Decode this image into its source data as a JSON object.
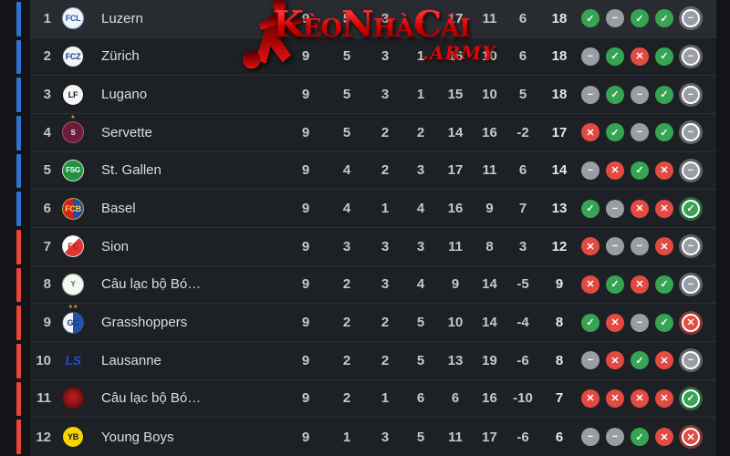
{
  "watermark": {
    "brand": "KèoNhàCái",
    "suffix": ".ARMY"
  },
  "zones": {
    "blue": "#2e72d2",
    "red": "#e84438"
  },
  "form_glyphs": {
    "W": "✓",
    "D": "−",
    "L": "✕"
  },
  "chart_data": {
    "type": "table",
    "columns": [
      "rank",
      "team",
      "played",
      "wins",
      "draws",
      "losses",
      "goals_for",
      "goals_against",
      "goal_diff",
      "points",
      "form"
    ]
  },
  "standings": [
    {
      "rank": "1",
      "team": "Luzern",
      "zone": "blue",
      "played": "9",
      "wins": "5",
      "draws": "3",
      "losses": "1",
      "gf": "17",
      "ga": "11",
      "gd": "6",
      "points": "18",
      "form": [
        "W",
        "D",
        "W",
        "W",
        "D"
      ],
      "logo": {
        "bg": "#f2f4f8",
        "fg": "#1b57b5",
        "label": "FCL",
        "border": "#8aa3cc"
      }
    },
    {
      "rank": "2",
      "team": "Zürich",
      "zone": "blue",
      "played": "9",
      "wins": "5",
      "draws": "3",
      "losses": "1",
      "gf": "16",
      "ga": "10",
      "gd": "6",
      "points": "18",
      "form": [
        "D",
        "W",
        "L",
        "W",
        "D"
      ],
      "logo": {
        "bg": "#f2f4f8",
        "fg": "#123d8c",
        "label": "FCZ",
        "border": "#2a2d31"
      }
    },
    {
      "rank": "3",
      "team": "Lugano",
      "zone": "blue",
      "played": "9",
      "wins": "5",
      "draws": "3",
      "losses": "1",
      "gf": "15",
      "ga": "10",
      "gd": "5",
      "points": "18",
      "form": [
        "D",
        "W",
        "D",
        "W",
        "D"
      ],
      "logo": {
        "bg": "#f5f5f5",
        "fg": "#16171a",
        "label": "LF",
        "border": "#16171a"
      }
    },
    {
      "rank": "4",
      "team": "Servette",
      "zone": "blue",
      "played": "9",
      "wins": "5",
      "draws": "2",
      "losses": "2",
      "gf": "14",
      "ga": "16",
      "gd": "-2",
      "points": "17",
      "form": [
        "L",
        "W",
        "D",
        "W",
        "D"
      ],
      "logo": {
        "bg": "#6d1c3c",
        "fg": "#f3e6ec",
        "label": "S",
        "border": "#9e5573",
        "stars": 1
      }
    },
    {
      "rank": "5",
      "team": "St. Gallen",
      "zone": "blue",
      "played": "9",
      "wins": "4",
      "draws": "2",
      "losses": "3",
      "gf": "17",
      "ga": "11",
      "gd": "6",
      "points": "14",
      "form": [
        "D",
        "L",
        "W",
        "L",
        "D"
      ],
      "logo": {
        "bg": "#249140",
        "fg": "#ffffff",
        "label": "FSG",
        "border": "#cfe4d4"
      }
    },
    {
      "rank": "6",
      "team": "Basel",
      "zone": "blue",
      "played": "9",
      "wins": "4",
      "draws": "1",
      "losses": "4",
      "gf": "16",
      "ga": "9",
      "gd": "7",
      "points": "13",
      "form": [
        "W",
        "D",
        "L",
        "L",
        "W"
      ],
      "logo": {
        "bg": "linear-gradient(90deg,#d21e26 50%,#1e4fa3 50%)",
        "fg": "#ffd24a",
        "label": "FCB",
        "border": "#caa43a"
      }
    },
    {
      "rank": "7",
      "team": "Sion",
      "zone": "red",
      "played": "9",
      "wins": "3",
      "draws": "3",
      "losses": "3",
      "gf": "11",
      "ga": "8",
      "gd": "3",
      "points": "12",
      "form": [
        "L",
        "D",
        "D",
        "L",
        "D"
      ],
      "logo": {
        "bg": "linear-gradient(135deg,#ffffff 45%,#e23434 45%)",
        "fg": "#b01c1c",
        "label": "FC",
        "border": "#d9d9d9"
      }
    },
    {
      "rank": "8",
      "team": "Câu lạc bộ Bó…",
      "zone": "red",
      "played": "9",
      "wins": "2",
      "draws": "3",
      "losses": "4",
      "gf": "9",
      "ga": "14",
      "gd": "-5",
      "points": "9",
      "form": [
        "L",
        "W",
        "L",
        "W",
        "D"
      ],
      "logo": {
        "bg": "#f4f7f3",
        "fg": "#1f8a3a",
        "label": "Y",
        "border": "#9cc3a6"
      }
    },
    {
      "rank": "9",
      "team": "Grasshoppers",
      "zone": "red",
      "played": "9",
      "wins": "2",
      "draws": "2",
      "losses": "5",
      "gf": "10",
      "ga": "14",
      "gd": "-4",
      "points": "8",
      "form": [
        "W",
        "L",
        "D",
        "W",
        "L"
      ],
      "logo": {
        "bg": "linear-gradient(90deg,#f2f4f8 50%,#1f55b0 50%)",
        "fg": "#123b80",
        "label": "GC",
        "border": "#39507a",
        "stars": 2
      }
    },
    {
      "rank": "10",
      "team": "Lausanne",
      "zone": "red",
      "played": "9",
      "wins": "2",
      "draws": "2",
      "losses": "5",
      "gf": "13",
      "ga": "19",
      "gd": "-6",
      "points": "8",
      "form": [
        "D",
        "L",
        "W",
        "L",
        "D"
      ],
      "logo": {
        "bg": "transparent",
        "fg": "#1c4fd6",
        "label": "LS"
      }
    },
    {
      "rank": "11",
      "team": "Câu lạc bộ Bó…",
      "zone": "red",
      "played": "9",
      "wins": "2",
      "draws": "1",
      "losses": "6",
      "gf": "6",
      "ga": "16",
      "gd": "-10",
      "points": "7",
      "form": [
        "L",
        "L",
        "L",
        "L",
        "W"
      ],
      "logo": {
        "bg": "radial-gradient(circle at 50% 45%, #c01f1f 0%, #7e1212 55%, #2a1214 80%)",
        "fg": "#e25555",
        "label": ""
      }
    },
    {
      "rank": "12",
      "team": "Young Boys",
      "zone": "red",
      "played": "9",
      "wins": "1",
      "draws": "3",
      "losses": "5",
      "gf": "11",
      "ga": "17",
      "gd": "-6",
      "points": "6",
      "form": [
        "D",
        "D",
        "W",
        "L",
        "L"
      ],
      "logo": {
        "bg": "#f5d400",
        "fg": "#16171a",
        "label": "YB",
        "border": "#16171a"
      }
    }
  ]
}
